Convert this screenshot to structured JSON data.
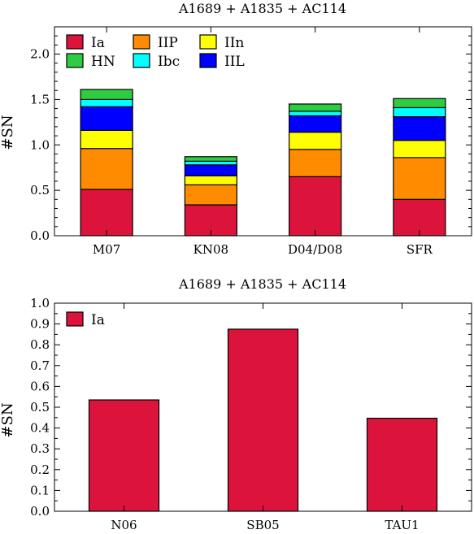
{
  "chart_data": [
    {
      "type": "bar",
      "stacked": true,
      "title": "A1689 + A1835 + AC114",
      "xlabel": "",
      "ylabel": "#SN",
      "ylim": [
        0,
        2.3
      ],
      "yticks": [
        "0.0",
        "0.5",
        "1.0",
        "1.5",
        "2.0"
      ],
      "categories": [
        "M07",
        "KN08",
        "D04/D08",
        "SFR"
      ],
      "legend_position": "top-left",
      "series": [
        {
          "name": "Ia",
          "color": "#dc143c",
          "values": [
            0.51,
            0.34,
            0.65,
            0.4
          ]
        },
        {
          "name": "IIP",
          "color": "#ff8c00",
          "values": [
            0.45,
            0.22,
            0.3,
            0.46
          ]
        },
        {
          "name": "IIn",
          "color": "#ffff00",
          "values": [
            0.2,
            0.1,
            0.19,
            0.19
          ]
        },
        {
          "name": "IIL",
          "color": "#0000ff",
          "values": [
            0.26,
            0.12,
            0.18,
            0.26
          ]
        },
        {
          "name": "Ibc",
          "color": "#00ffff",
          "values": [
            0.08,
            0.04,
            0.05,
            0.1
          ]
        },
        {
          "name": "HN",
          "color": "#2ecc40",
          "values": [
            0.11,
            0.05,
            0.08,
            0.1
          ]
        }
      ],
      "legend_order": [
        "Ia",
        "IIP",
        "IIn",
        "HN",
        "Ibc",
        "IIL"
      ]
    },
    {
      "type": "bar",
      "title": "A1689 + A1835 + AC114",
      "xlabel": "",
      "ylabel": "#SN",
      "ylim": [
        0,
        1.0
      ],
      "yticks": [
        "0.0",
        "0.1",
        "0.2",
        "0.3",
        "0.4",
        "0.5",
        "0.6",
        "0.7",
        "0.8",
        "0.9",
        "1.0"
      ],
      "categories": [
        "N06",
        "SB05",
        "TAU1"
      ],
      "legend_position": "top-left",
      "series": [
        {
          "name": "Ia",
          "color": "#dc143c",
          "values": [
            0.535,
            0.875,
            0.447
          ]
        }
      ],
      "legend_order": [
        "Ia"
      ]
    }
  ]
}
